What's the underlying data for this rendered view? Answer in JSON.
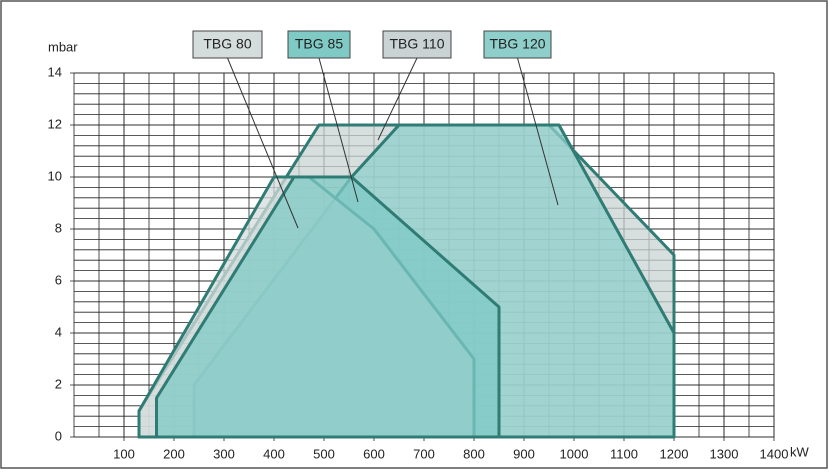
{
  "chart_data": {
    "type": "area",
    "x_label": "kW",
    "y_label": "mbar",
    "xlim": [
      0,
      1400
    ],
    "ylim": [
      0,
      14
    ],
    "xticks": [
      100,
      200,
      300,
      400,
      500,
      600,
      700,
      800,
      900,
      1000,
      1100,
      1200,
      1300,
      1400
    ],
    "yticks": [
      0,
      2,
      4,
      6,
      8,
      10,
      12,
      14
    ],
    "x_minor_step": 50,
    "y_minor_step": 0.4,
    "grid": true,
    "series": [
      {
        "name": "TBG 110",
        "color": "#c9d3d3",
        "x": [
          130,
          130,
          490,
          950,
          1200,
          1200
        ],
        "values": [
          0,
          1,
          12,
          12,
          7,
          0
        ]
      },
      {
        "name": "TBG 120",
        "color": "#8fcfcb",
        "x": [
          240,
          240,
          555,
          650,
          970,
          1200,
          1200
        ],
        "values": [
          0,
          2,
          10,
          12,
          12,
          4,
          0
        ]
      },
      {
        "name": "TBG 80",
        "color": "#d4dcdc",
        "x": [
          130,
          130,
          400,
          470,
          600,
          800,
          800
        ],
        "values": [
          0,
          1,
          10,
          10,
          8,
          3,
          0
        ]
      },
      {
        "name": "TBG 85",
        "color": "#7fcac5",
        "x": [
          165,
          165,
          440,
          555,
          850,
          850
        ],
        "values": [
          0,
          1.5,
          10,
          10,
          5,
          0
        ]
      }
    ]
  }
}
